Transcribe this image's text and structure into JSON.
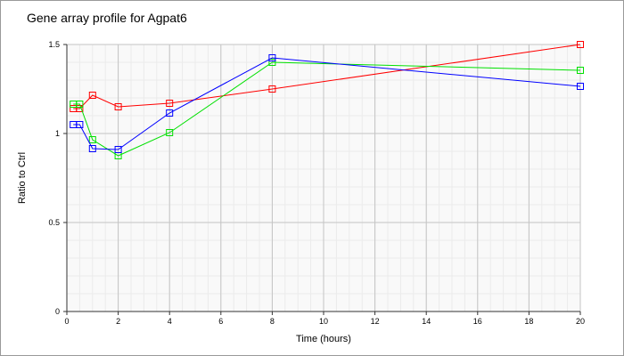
{
  "chart_data": {
    "type": "line",
    "title": "Gene array profile for Agpat6",
    "xlabel": "Time (hours)",
    "ylabel": "Ratio to Ctrl",
    "xlim": [
      0,
      20
    ],
    "ylim": [
      0,
      1.5
    ],
    "xticks": [
      0,
      2,
      4,
      6,
      8,
      10,
      12,
      14,
      16,
      18,
      20
    ],
    "yticks": [
      0,
      0.5,
      1,
      1.5
    ],
    "ytick_labels": [
      "0",
      "0.5",
      "1",
      "1.5"
    ],
    "grid": true,
    "x": [
      0.25,
      0.5,
      1,
      2,
      4,
      8,
      20
    ],
    "series": [
      {
        "name": "red",
        "color": "#ff0000",
        "values": [
          1.14,
          1.14,
          1.215,
          1.15,
          1.17,
          1.25,
          1.5
        ]
      },
      {
        "name": "green",
        "color": "#00e000",
        "values": [
          1.165,
          1.165,
          0.965,
          0.875,
          1.005,
          1.4,
          1.355
        ]
      },
      {
        "name": "blue",
        "color": "#0000ff",
        "values": [
          1.05,
          1.05,
          0.915,
          0.91,
          1.115,
          1.425,
          1.265
        ]
      }
    ]
  }
}
